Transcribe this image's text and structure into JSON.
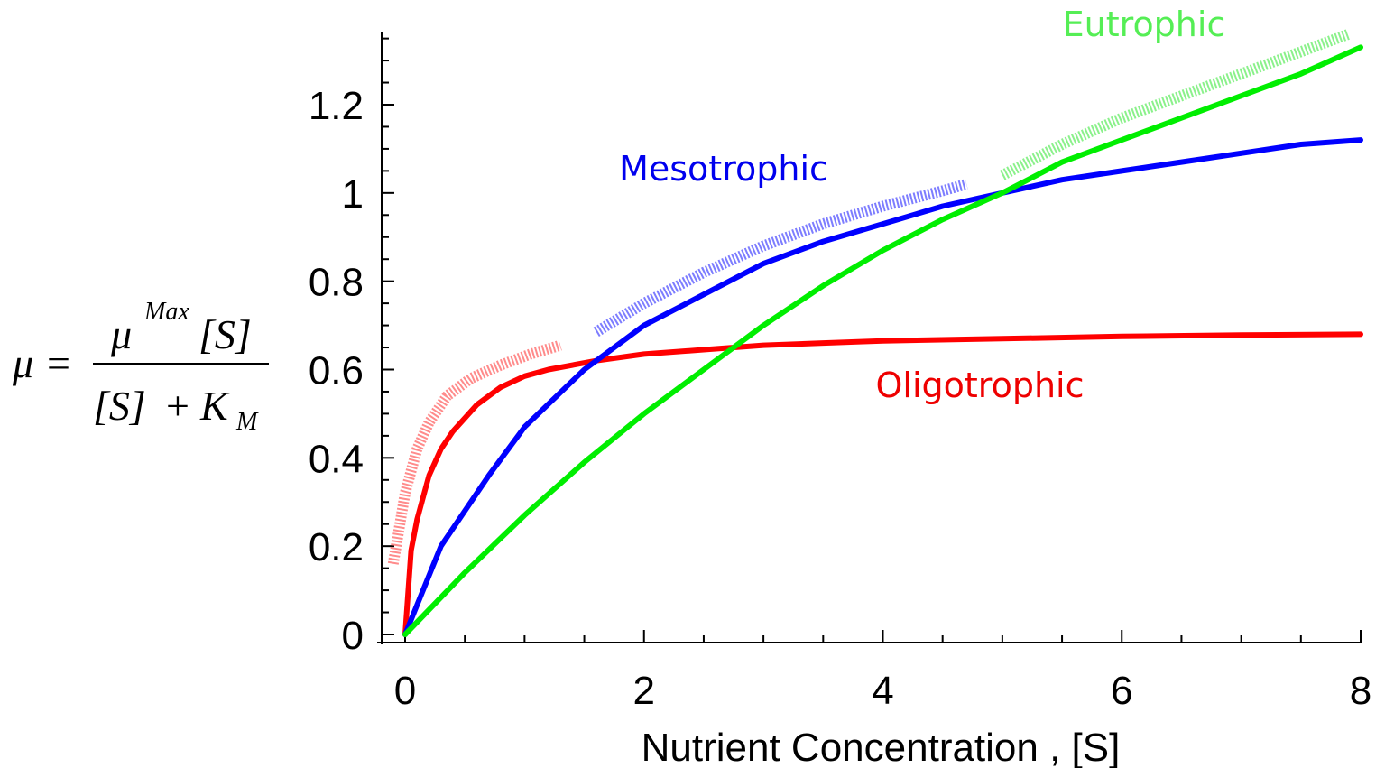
{
  "chart_data": {
    "type": "line",
    "title": "",
    "xlabel": "Nutrient Concentration , [S]",
    "ylabel": {
      "mu": "μ",
      "equals": "=",
      "numerator_mu": "μ",
      "numerator_sup": "Max",
      "numerator_s": "[S]",
      "denominator_s": "[S]",
      "denominator_plus": "+",
      "denominator_k": "K",
      "denominator_sub": "M"
    },
    "xlim": [
      0,
      8
    ],
    "ylim": [
      0,
      1.35
    ],
    "xticks": [
      "0",
      "2",
      "4",
      "6",
      "8"
    ],
    "yticks": [
      "0",
      "0.2",
      "0.4",
      "0.6",
      "0.8",
      "1",
      "1.2"
    ],
    "grid": false,
    "series": [
      {
        "name": "Oligotrophic",
        "color": "#ff0000",
        "x": [
          0,
          0.05,
          0.1,
          0.2,
          0.3,
          0.4,
          0.6,
          0.8,
          1.0,
          1.2,
          1.6,
          2.0,
          2.5,
          3.0,
          3.5,
          4.0,
          5.0,
          6.0,
          7.0,
          8.0
        ],
        "values": [
          0,
          0.19,
          0.26,
          0.36,
          0.42,
          0.46,
          0.52,
          0.56,
          0.585,
          0.6,
          0.62,
          0.635,
          0.645,
          0.655,
          0.66,
          0.665,
          0.67,
          0.675,
          0.678,
          0.68
        ]
      },
      {
        "name": "Mesotrophic",
        "color": "#0000ff",
        "x": [
          0,
          0.3,
          0.7,
          1.0,
          1.5,
          2.0,
          2.5,
          3.0,
          3.5,
          4.0,
          4.5,
          5.0,
          5.5,
          6.0,
          6.5,
          7.0,
          7.5,
          8.0
        ],
        "values": [
          0,
          0.2,
          0.36,
          0.47,
          0.6,
          0.7,
          0.77,
          0.84,
          0.89,
          0.93,
          0.97,
          1.0,
          1.03,
          1.05,
          1.07,
          1.09,
          1.11,
          1.12
        ]
      },
      {
        "name": "Eutrophic",
        "color": "#00ee00",
        "x": [
          0,
          0.5,
          1.0,
          1.5,
          2.0,
          2.5,
          3.0,
          3.5,
          4.0,
          4.5,
          5.0,
          5.5,
          6.0,
          6.5,
          7.0,
          7.5,
          8.0
        ],
        "values": [
          0,
          0.14,
          0.27,
          0.39,
          0.5,
          0.6,
          0.7,
          0.79,
          0.87,
          0.94,
          1.0,
          1.07,
          1.12,
          1.17,
          1.22,
          1.27,
          1.33
        ]
      }
    ],
    "annotations": [
      {
        "series": "Oligotrophic",
        "style": "dotted-band",
        "color": "#ff7777",
        "x": [
          -0.1,
          -0.05,
          0.0,
          0.1,
          0.2,
          0.35,
          0.55,
          0.8,
          1.05,
          1.3
        ],
        "values": [
          0.16,
          0.24,
          0.32,
          0.42,
          0.48,
          0.54,
          0.58,
          0.61,
          0.635,
          0.655
        ]
      },
      {
        "series": "Mesotrophic",
        "style": "dotted-band",
        "color": "#6666ff",
        "x": [
          1.6,
          2.0,
          2.5,
          3.0,
          3.5,
          4.0,
          4.5,
          4.7
        ],
        "values": [
          0.685,
          0.75,
          0.82,
          0.88,
          0.93,
          0.97,
          1.005,
          1.02
        ]
      },
      {
        "series": "Eutrophic",
        "style": "dotted-band",
        "color": "#77ee77",
        "x": [
          5.0,
          5.5,
          6.0,
          6.5,
          7.0,
          7.5,
          7.9
        ],
        "values": [
          1.04,
          1.11,
          1.17,
          1.22,
          1.27,
          1.32,
          1.36
        ]
      }
    ]
  }
}
